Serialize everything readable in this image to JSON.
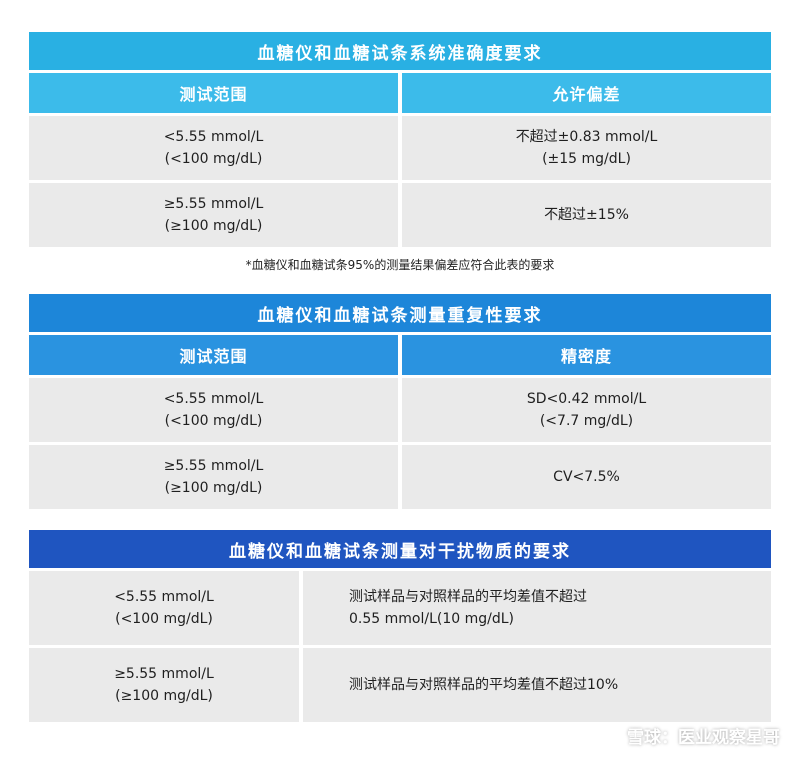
{
  "accuracy": {
    "title": "血糖仪和血糖试条系统准确度要求",
    "headers": [
      "测试范围",
      "允许偏差"
    ],
    "rows": [
      {
        "range_line1": "<5.55 mmol/L",
        "range_line2": "(<100 mg/dL)",
        "value_line1": "不超过±0.83 mmol/L",
        "value_line2": "(±15 mg/dL)"
      },
      {
        "range_line1": "≥5.55 mmol/L",
        "range_line2": "(≥100 mg/dL)",
        "value_line1": "不超过±15%"
      }
    ],
    "note": "*血糖仪和血糖试条95%的测量结果偏差应符合此表的要求"
  },
  "repeatability": {
    "title": "血糖仪和血糖试条测量重复性要求",
    "headers": [
      "测试范围",
      "精密度"
    ],
    "rows": [
      {
        "range_line1": "<5.55 mmol/L",
        "range_line2": "(<100 mg/dL)",
        "value_line1": "SD<0.42 mmol/L",
        "value_line2": "(<7.7 mg/dL)"
      },
      {
        "range_line1": "≥5.55 mmol/L",
        "range_line2": "(≥100 mg/dL)",
        "value_line1": "CV<7.5%"
      }
    ]
  },
  "interference": {
    "title": "血糖仪和血糖试条测量对干扰物质的要求",
    "rows": [
      {
        "range_line1": "<5.55 mmol/L",
        "range_line2": "(<100 mg/dL)",
        "value_line1": "测试样品与对照样品的平均差值不超过",
        "value_line2": "0.55 mmol/L(10 mg/dL)"
      },
      {
        "range_line1": "≥5.55 mmol/L",
        "range_line2": "(≥100 mg/dL)",
        "value_line1": "测试样品与对照样品的平均差值不超过10%"
      }
    ]
  },
  "watermark": {
    "icon": "snowball-logo-icon",
    "text": "雪球：医业观察星哥"
  }
}
